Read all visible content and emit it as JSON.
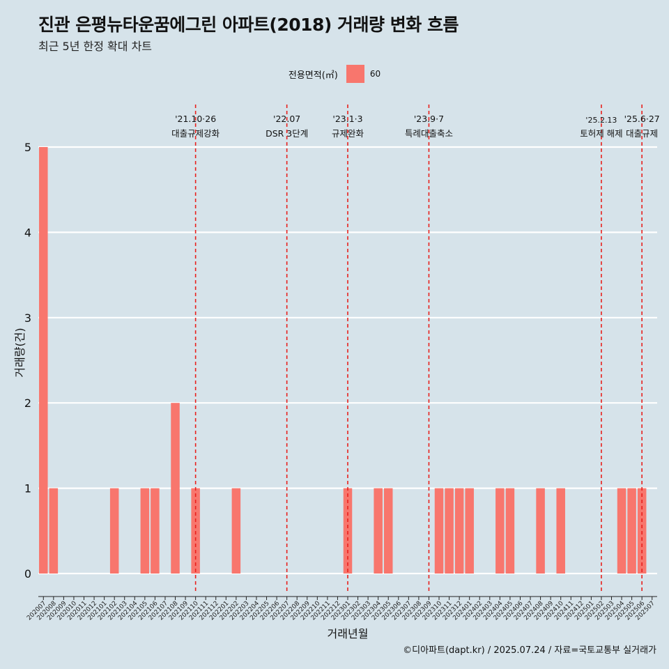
{
  "title": "진관 은평뉴타운꿈에그린 아파트(2018) 거래량 변화 흐름",
  "subtitle": "최근 5년 한정 확대 차트",
  "caption": "©디아파트(dapt.kr) / 2025.07.24 / 자료=국토교통부 실거래가",
  "legend": {
    "title": "전용면적(㎡)",
    "label": "60",
    "color": "#f8766d"
  },
  "chart_data": {
    "type": "bar",
    "xlabel": "거래년월",
    "ylabel": "거래량(건)",
    "ylim": [
      0,
      5
    ],
    "yticks": [
      0,
      1,
      2,
      3,
      4,
      5
    ],
    "categories": [
      "202007",
      "202008",
      "202009",
      "202010",
      "202011",
      "202012",
      "202101",
      "202102",
      "202103",
      "202104",
      "202105",
      "202106",
      "202107",
      "202108",
      "202109",
      "202110",
      "202111",
      "202112",
      "202201",
      "202202",
      "202203",
      "202204",
      "202205",
      "202206",
      "202207",
      "202208",
      "202209",
      "202210",
      "202211",
      "202212",
      "202301",
      "202302",
      "202303",
      "202304",
      "202305",
      "202306",
      "202307",
      "202308",
      "202309",
      "202310",
      "202311",
      "202312",
      "202401",
      "202402",
      "202403",
      "202404",
      "202405",
      "202406",
      "202407",
      "202408",
      "202409",
      "202410",
      "202411",
      "202412",
      "202501",
      "202502",
      "202503",
      "202504",
      "202505",
      "202506",
      "202507"
    ],
    "series": [
      {
        "name": "60",
        "values": [
          5,
          1,
          0,
          0,
          0,
          0,
          0,
          1,
          0,
          0,
          1,
          1,
          0,
          2,
          0,
          1,
          0,
          0,
          0,
          1,
          0,
          0,
          0,
          0,
          0,
          0,
          0,
          0,
          0,
          0,
          1,
          0,
          0,
          1,
          1,
          0,
          0,
          0,
          0,
          1,
          1,
          1,
          1,
          0,
          0,
          1,
          1,
          0,
          0,
          1,
          0,
          1,
          0,
          0,
          0,
          0,
          0,
          1,
          1,
          1,
          0
        ]
      }
    ],
    "events": [
      {
        "x": "202110",
        "date": "'21.10·26",
        "label": "대출규제강화"
      },
      {
        "x": "202207",
        "date": "'22.07",
        "label": "DSR 3단계"
      },
      {
        "x": "202301",
        "date": "'23.1·3",
        "label": "규제완화"
      },
      {
        "x": "202309",
        "date": "'23.9·7",
        "label": "특례대출축소"
      },
      {
        "x": "202502",
        "date": "'25.2.13",
        "label": "토허제 해제"
      },
      {
        "x": "202506",
        "date": "'25.6·27",
        "label": "대출규제"
      }
    ],
    "colors": {
      "bar": "#f8766d",
      "event_line": "#e8201c",
      "grid": "#ffffff",
      "background": "#d6e3ea"
    }
  }
}
